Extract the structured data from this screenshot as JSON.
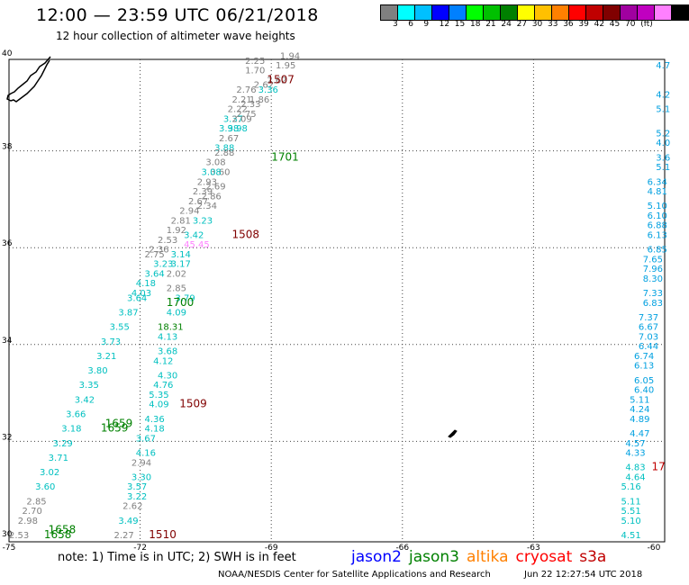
{
  "header": {
    "title": "12:00 — 23:59 UTC 06/21/2018",
    "subtitle": "12 hour collection of altimeter wave heights"
  },
  "legend": {
    "colors": [
      "#808080",
      "#00ffff",
      "#00c0ff",
      "#0000ff",
      "#0080ff",
      "#00ff00",
      "#00c000",
      "#008000",
      "#ffff00",
      "#ffc000",
      "#ff8000",
      "#ff0000",
      "#c00000",
      "#800000",
      "#a000a0",
      "#c000c0",
      "#ff80ff",
      "#000000"
    ],
    "labels": [
      "3",
      "6",
      "9",
      "12",
      "15",
      "18",
      "21",
      "24",
      "27",
      "30",
      "33",
      "36",
      "39",
      "42",
      "45",
      "70",
      "(ft)"
    ]
  },
  "axes": {
    "x_ticks": [
      "-75",
      "-72",
      "-69",
      "-66",
      "-63",
      "-60"
    ],
    "y_ticks": [
      "40",
      "38",
      "36",
      "34",
      "32",
      "30"
    ]
  },
  "notes": {
    "text": "note:  1) Time is in UTC;  2) SWH is in feet"
  },
  "satellites": [
    {
      "name": "jason2",
      "color": "#0000ff"
    },
    {
      "name": "jason3",
      "color": "#008000"
    },
    {
      "name": "altika",
      "color": "#ff8000"
    },
    {
      "name": "cryosat",
      "color": "#ff0000"
    },
    {
      "name": "s3a",
      "color": "#c00000"
    }
  ],
  "footer": {
    "credit": "NOAA/NESDIS Center for Satellite Applications and Research",
    "timestamp": "Jun 22 12:27:54 UTC 2018"
  },
  "track_times": [
    {
      "text": "1507",
      "lon": -69.1,
      "lat": 39.4,
      "color": "#800000"
    },
    {
      "text": "1701",
      "lon": -69.0,
      "lat": 37.8,
      "color": "#008000"
    },
    {
      "text": "1508",
      "lon": -69.9,
      "lat": 36.2,
      "color": "#800000"
    },
    {
      "text": "1700",
      "lon": -71.4,
      "lat": 34.8,
      "color": "#008000"
    },
    {
      "text": "1509",
      "lon": -71.1,
      "lat": 32.7,
      "color": "#800000"
    },
    {
      "text": "1659",
      "lon": -72.8,
      "lat": 32.3,
      "color": "#008000"
    },
    {
      "text": "1659",
      "lon": -72.9,
      "lat": 32.2,
      "color": "#008000"
    },
    {
      "text": "1510",
      "lon": -71.8,
      "lat": 30.0,
      "color": "#800000"
    },
    {
      "text": "1658",
      "lon": -74.1,
      "lat": 30.1,
      "color": "#008000"
    },
    {
      "text": "1658",
      "lon": -74.2,
      "lat": 30.0,
      "color": "#008000"
    },
    {
      "text": "17",
      "lon": -60.3,
      "lat": 31.4,
      "color": "#c00000"
    }
  ],
  "swh_values": [
    {
      "text": "2.25",
      "lon": -69.6,
      "lat": 39.8,
      "color": "#808080"
    },
    {
      "text": "1.94",
      "lon": -68.8,
      "lat": 39.9,
      "color": "#808080"
    },
    {
      "text": "1.95",
      "lon": -68.9,
      "lat": 39.7,
      "color": "#808080"
    },
    {
      "text": "1.70",
      "lon": -69.6,
      "lat": 39.6,
      "color": "#808080"
    },
    {
      "text": "2.62",
      "lon": -69.1,
      "lat": 39.4,
      "color": "#808080"
    },
    {
      "text": "2.62",
      "lon": -69.4,
      "lat": 39.3,
      "color": "#808080"
    },
    {
      "text": "2.76",
      "lon": -69.8,
      "lat": 39.2,
      "color": "#808080"
    },
    {
      "text": "3.36",
      "lon": -69.3,
      "lat": 39.2,
      "color": "#00c0c0"
    },
    {
      "text": "1.86",
      "lon": -69.5,
      "lat": 39.0,
      "color": "#808080"
    },
    {
      "text": "2.21",
      "lon": -69.9,
      "lat": 39.0,
      "color": "#808080"
    },
    {
      "text": "2.33",
      "lon": -69.7,
      "lat": 38.9,
      "color": "#808080"
    },
    {
      "text": "2.22",
      "lon": -70.0,
      "lat": 38.8,
      "color": "#808080"
    },
    {
      "text": "2.75",
      "lon": -69.8,
      "lat": 38.7,
      "color": "#808080"
    },
    {
      "text": "3.37",
      "lon": -70.1,
      "lat": 38.6,
      "color": "#00c0c0"
    },
    {
      "text": "2.09",
      "lon": -69.9,
      "lat": 38.6,
      "color": "#808080"
    },
    {
      "text": "3.98",
      "lon": -70.0,
      "lat": 38.4,
      "color": "#00c0c0"
    },
    {
      "text": "3.98",
      "lon": -70.2,
      "lat": 38.4,
      "color": "#00c0c0"
    },
    {
      "text": "2.67",
      "lon": -70.2,
      "lat": 38.2,
      "color": "#808080"
    },
    {
      "text": "3.88",
      "lon": -70.3,
      "lat": 38.0,
      "color": "#00c0c0"
    },
    {
      "text": "2.88",
      "lon": -70.3,
      "lat": 37.9,
      "color": "#808080"
    },
    {
      "text": "3.08",
      "lon": -70.5,
      "lat": 37.7,
      "color": "#808080"
    },
    {
      "text": "3.60",
      "lon": -70.4,
      "lat": 37.5,
      "color": "#808080"
    },
    {
      "text": "3.08",
      "lon": -70.6,
      "lat": 37.5,
      "color": "#00c0c0"
    },
    {
      "text": "2.93",
      "lon": -70.7,
      "lat": 37.3,
      "color": "#808080"
    },
    {
      "text": "2.69",
      "lon": -70.5,
      "lat": 37.2,
      "color": "#808080"
    },
    {
      "text": "2.39",
      "lon": -70.8,
      "lat": 37.1,
      "color": "#808080"
    },
    {
      "text": "2.86",
      "lon": -70.6,
      "lat": 37.0,
      "color": "#808080"
    },
    {
      "text": "2.67",
      "lon": -70.9,
      "lat": 36.9,
      "color": "#808080"
    },
    {
      "text": "2.34",
      "lon": -70.7,
      "lat": 36.8,
      "color": "#808080"
    },
    {
      "text": "2.94",
      "lon": -71.1,
      "lat": 36.7,
      "color": "#808080"
    },
    {
      "text": "2.81",
      "lon": -71.3,
      "lat": 36.5,
      "color": "#808080"
    },
    {
      "text": "3.23",
      "lon": -70.8,
      "lat": 36.5,
      "color": "#00c0c0"
    },
    {
      "text": "1.92",
      "lon": -71.4,
      "lat": 36.3,
      "color": "#808080"
    },
    {
      "text": "3.42",
      "lon": -71.0,
      "lat": 36.2,
      "color": "#00c0c0"
    },
    {
      "text": "2.53",
      "lon": -71.6,
      "lat": 36.1,
      "color": "#808080"
    },
    {
      "text": "45.45",
      "lon": -71.0,
      "lat": 36.0,
      "color": "#ff80ff"
    },
    {
      "text": "2.36",
      "lon": -71.8,
      "lat": 35.9,
      "color": "#808080"
    },
    {
      "text": "2.75",
      "lon": -71.9,
      "lat": 35.8,
      "color": "#808080"
    },
    {
      "text": "3.14",
      "lon": -71.3,
      "lat": 35.8,
      "color": "#00c0c0"
    },
    {
      "text": "3.23",
      "lon": -71.7,
      "lat": 35.6,
      "color": "#00c0c0"
    },
    {
      "text": "3.17",
      "lon": -71.3,
      "lat": 35.6,
      "color": "#00c0c0"
    },
    {
      "text": "3.64",
      "lon": -71.9,
      "lat": 35.4,
      "color": "#00c0c0"
    },
    {
      "text": "2.02",
      "lon": -71.4,
      "lat": 35.4,
      "color": "#808080"
    },
    {
      "text": "4.18",
      "lon": -72.1,
      "lat": 35.2,
      "color": "#00c0c0"
    },
    {
      "text": "2.85",
      "lon": -71.4,
      "lat": 35.1,
      "color": "#808080"
    },
    {
      "text": "4.03",
      "lon": -72.2,
      "lat": 35.0,
      "color": "#00c0c0"
    },
    {
      "text": "3.79",
      "lon": -71.2,
      "lat": 34.9,
      "color": "#00c0c0"
    },
    {
      "text": "4.09",
      "lon": -71.4,
      "lat": 34.6,
      "color": "#00c0c0"
    },
    {
      "text": "18.31",
      "lon": -71.6,
      "lat": 34.3,
      "color": "#008000"
    },
    {
      "text": "4.13",
      "lon": -71.6,
      "lat": 34.1,
      "color": "#00c0c0"
    },
    {
      "text": "3.68",
      "lon": -71.6,
      "lat": 33.8,
      "color": "#00c0c0"
    },
    {
      "text": "4.12",
      "lon": -71.7,
      "lat": 33.6,
      "color": "#00c0c0"
    },
    {
      "text": "4.30",
      "lon": -71.6,
      "lat": 33.3,
      "color": "#00c0c0"
    },
    {
      "text": "4.76",
      "lon": -71.7,
      "lat": 33.1,
      "color": "#00c0c0"
    },
    {
      "text": "5.35",
      "lon": -71.8,
      "lat": 32.9,
      "color": "#00c0c0"
    },
    {
      "text": "4.09",
      "lon": -71.8,
      "lat": 32.7,
      "color": "#00c0c0"
    },
    {
      "text": "4.36",
      "lon": -71.9,
      "lat": 32.4,
      "color": "#00c0c0"
    },
    {
      "text": "4.18",
      "lon": -71.9,
      "lat": 32.2,
      "color": "#00c0c0"
    },
    {
      "text": "3.67",
      "lon": -72.1,
      "lat": 32.0,
      "color": "#00c0c0"
    },
    {
      "text": "4.16",
      "lon": -72.1,
      "lat": 31.7,
      "color": "#00c0c0"
    },
    {
      "text": "2.94",
      "lon": -72.2,
      "lat": 31.5,
      "color": "#808080"
    },
    {
      "text": "3.30",
      "lon": -72.2,
      "lat": 31.2,
      "color": "#00c0c0"
    },
    {
      "text": "3.57",
      "lon": -72.3,
      "lat": 31.0,
      "color": "#00c0c0"
    },
    {
      "text": "3.22",
      "lon": -72.3,
      "lat": 30.8,
      "color": "#00c0c0"
    },
    {
      "text": "2.62",
      "lon": -72.4,
      "lat": 30.6,
      "color": "#808080"
    },
    {
      "text": "3.49",
      "lon": -72.5,
      "lat": 30.3,
      "color": "#00c0c0"
    },
    {
      "text": "2.27",
      "lon": -72.6,
      "lat": 30.0,
      "color": "#808080"
    },
    {
      "text": "2.53",
      "lon": -75.0,
      "lat": 30.0,
      "color": "#808080"
    },
    {
      "text": "2.98",
      "lon": -74.8,
      "lat": 30.3,
      "color": "#808080"
    },
    {
      "text": "4.7",
      "lon": -60.2,
      "lat": 39.7,
      "color": "#00a0e0"
    },
    {
      "text": "4.2",
      "lon": -60.2,
      "lat": 39.1,
      "color": "#00a0e0"
    },
    {
      "text": "5.1",
      "lon": -60.2,
      "lat": 38.8,
      "color": "#00a0e0"
    },
    {
      "text": "5.2",
      "lon": -60.2,
      "lat": 38.3,
      "color": "#00a0e0"
    },
    {
      "text": "4.0",
      "lon": -60.2,
      "lat": 38.1,
      "color": "#00a0e0"
    },
    {
      "text": "3.6",
      "lon": -60.2,
      "lat": 37.8,
      "color": "#00a0e0"
    },
    {
      "text": "5.1",
      "lon": -60.2,
      "lat": 37.6,
      "color": "#00a0e0"
    },
    {
      "text": "6.34",
      "lon": -60.4,
      "lat": 37.3,
      "color": "#00a0e0"
    },
    {
      "text": "4.81",
      "lon": -60.4,
      "lat": 37.1,
      "color": "#00a0e0"
    },
    {
      "text": "5.10",
      "lon": -60.4,
      "lat": 36.8,
      "color": "#00a0e0"
    },
    {
      "text": "6.10",
      "lon": -60.4,
      "lat": 36.6,
      "color": "#00a0e0"
    },
    {
      "text": "6.88",
      "lon": -60.4,
      "lat": 36.4,
      "color": "#00a0e0"
    },
    {
      "text": "6.13",
      "lon": -60.4,
      "lat": 36.2,
      "color": "#00a0e0"
    },
    {
      "text": "6.85",
      "lon": -60.4,
      "lat": 35.9,
      "color": "#00a0e0"
    },
    {
      "text": "7.65",
      "lon": -60.5,
      "lat": 35.7,
      "color": "#00a0e0"
    },
    {
      "text": "7.96",
      "lon": -60.5,
      "lat": 35.5,
      "color": "#00a0e0"
    },
    {
      "text": "8.30",
      "lon": -60.5,
      "lat": 35.3,
      "color": "#00a0e0"
    },
    {
      "text": "7.33",
      "lon": -60.5,
      "lat": 35.0,
      "color": "#00a0e0"
    },
    {
      "text": "6.83",
      "lon": -60.5,
      "lat": 34.8,
      "color": "#00a0e0"
    },
    {
      "text": "7.37",
      "lon": -60.6,
      "lat": 34.5,
      "color": "#00a0e0"
    },
    {
      "text": "6.67",
      "lon": -60.6,
      "lat": 34.3,
      "color": "#00a0e0"
    },
    {
      "text": "7.03",
      "lon": -60.6,
      "lat": 34.1,
      "color": "#00a0e0"
    },
    {
      "text": "6.44",
      "lon": -60.6,
      "lat": 33.9,
      "color": "#00a0e0"
    },
    {
      "text": "6.74",
      "lon": -60.7,
      "lat": 33.7,
      "color": "#00a0e0"
    },
    {
      "text": "6.13",
      "lon": -60.7,
      "lat": 33.5,
      "color": "#00a0e0"
    },
    {
      "text": "6.05",
      "lon": -60.7,
      "lat": 33.2,
      "color": "#00a0e0"
    },
    {
      "text": "6.40",
      "lon": -60.7,
      "lat": 33.0,
      "color": "#00a0e0"
    },
    {
      "text": "5.11",
      "lon": -60.8,
      "lat": 32.8,
      "color": "#00a0e0"
    },
    {
      "text": "4.24",
      "lon": -60.8,
      "lat": 32.6,
      "color": "#00a0e0"
    },
    {
      "text": "4.89",
      "lon": -60.8,
      "lat": 32.4,
      "color": "#00a0e0"
    },
    {
      "text": "4.47",
      "lon": -60.8,
      "lat": 32.1,
      "color": "#00a0e0"
    },
    {
      "text": "4.57",
      "lon": -60.9,
      "lat": 31.9,
      "color": "#00a0e0"
    },
    {
      "text": "4.33",
      "lon": -60.9,
      "lat": 31.7,
      "color": "#00a0e0"
    },
    {
      "text": "4.83",
      "lon": -60.9,
      "lat": 31.4,
      "color": "#00c0c0"
    },
    {
      "text": "4.64",
      "lon": -60.9,
      "lat": 31.2,
      "color": "#00c0c0"
    },
    {
      "text": "5.16",
      "lon": -61.0,
      "lat": 31.0,
      "color": "#00c0c0"
    },
    {
      "text": "5.11",
      "lon": -61.0,
      "lat": 30.7,
      "color": "#00c0c0"
    },
    {
      "text": "5.51",
      "lon": -61.0,
      "lat": 30.5,
      "color": "#00c0c0"
    },
    {
      "text": "5.10",
      "lon": -61.0,
      "lat": 30.3,
      "color": "#00c0c0"
    },
    {
      "text": "4.51",
      "lon": -61.0,
      "lat": 30.0,
      "color": "#00c0c0"
    }
  ],
  "dense_track": [
    {
      "text": "3.64",
      "lon": -72.3,
      "lat": 34.9,
      "color": "#00c0c0"
    },
    {
      "text": "3.87",
      "lon": -72.5,
      "lat": 34.6,
      "color": "#00c0c0"
    },
    {
      "text": "3.55",
      "lon": -72.7,
      "lat": 34.3,
      "color": "#00c0c0"
    },
    {
      "text": "3.73",
      "lon": -72.9,
      "lat": 34.0,
      "color": "#00c0c0"
    },
    {
      "text": "3.21",
      "lon": -73.0,
      "lat": 33.7,
      "color": "#00c0c0"
    },
    {
      "text": "3.80",
      "lon": -73.2,
      "lat": 33.4,
      "color": "#00c0c0"
    },
    {
      "text": "3.35",
      "lon": -73.4,
      "lat": 33.1,
      "color": "#00c0c0"
    },
    {
      "text": "3.42",
      "lon": -73.5,
      "lat": 32.8,
      "color": "#00c0c0"
    },
    {
      "text": "3.66",
      "lon": -73.7,
      "lat": 32.5,
      "color": "#00c0c0"
    },
    {
      "text": "3.18",
      "lon": -73.8,
      "lat": 32.2,
      "color": "#00c0c0"
    },
    {
      "text": "3.29",
      "lon": -74.0,
      "lat": 31.9,
      "color": "#00c0c0"
    },
    {
      "text": "3.71",
      "lon": -74.1,
      "lat": 31.6,
      "color": "#00c0c0"
    },
    {
      "text": "3.02",
      "lon": -74.3,
      "lat": 31.3,
      "color": "#00c0c0"
    },
    {
      "text": "3.60",
      "lon": -74.4,
      "lat": 31.0,
      "color": "#00c0c0"
    },
    {
      "text": "2.85",
      "lon": -74.6,
      "lat": 30.7,
      "color": "#808080"
    },
    {
      "text": "2.70",
      "lon": -74.7,
      "lat": 30.5,
      "color": "#808080"
    }
  ]
}
